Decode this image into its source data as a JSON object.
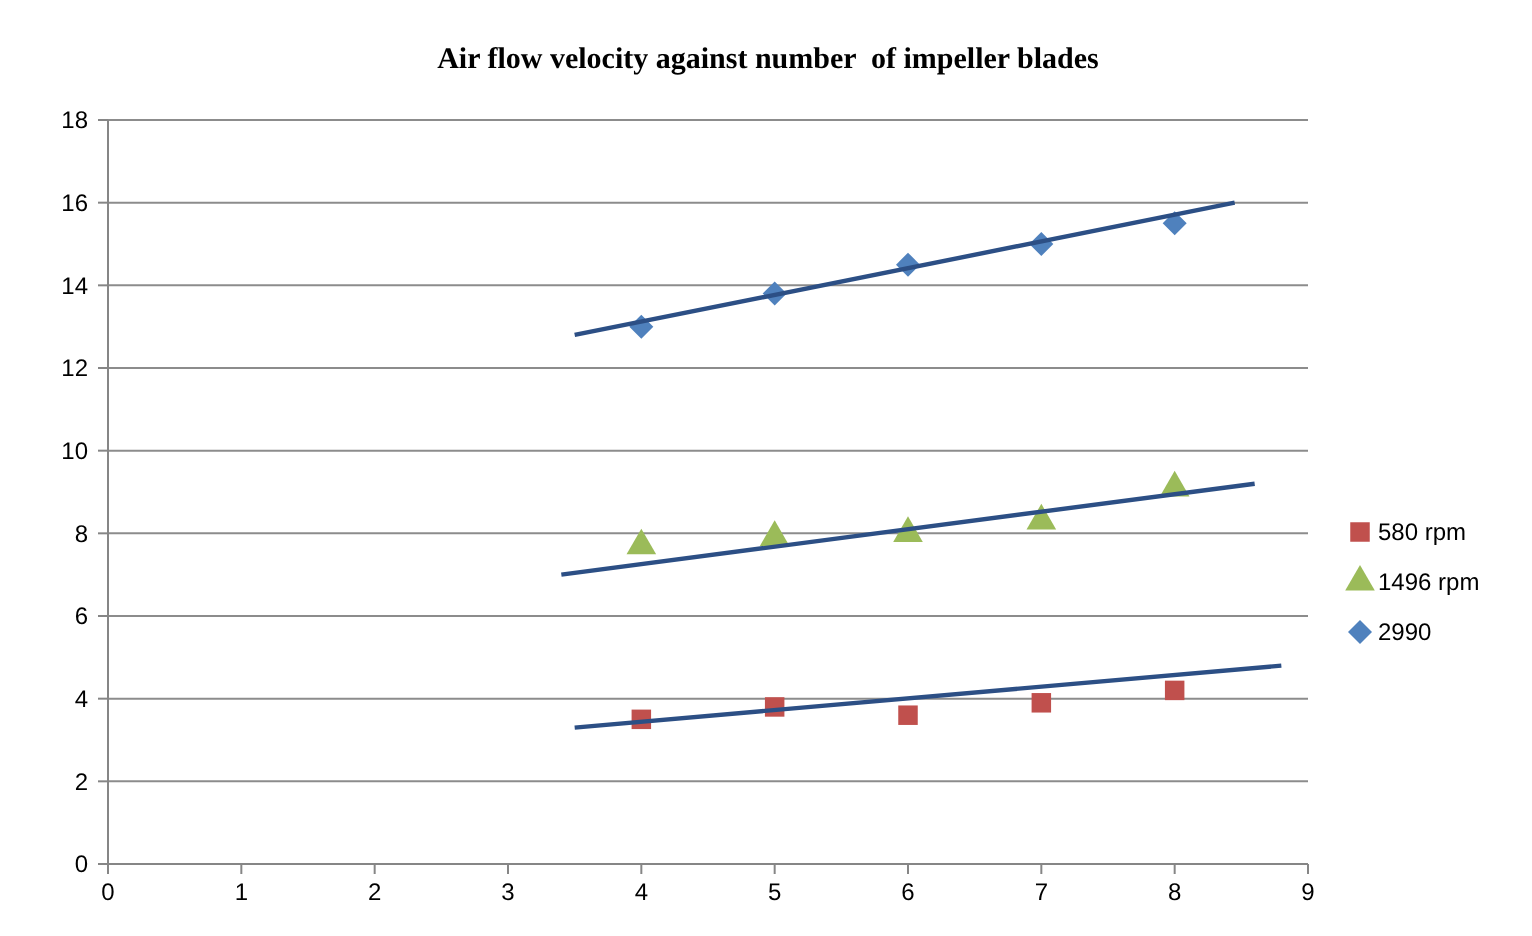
{
  "chart_data": {
    "type": "scatter",
    "title": "Air flow velocity against number  of impeller blades",
    "x": [
      4,
      5,
      6,
      7,
      8
    ],
    "series": [
      {
        "name": "580 rpm",
        "color": "#c0504d",
        "marker": "square",
        "values": [
          3.5,
          3.8,
          3.6,
          3.9,
          4.2
        ]
      },
      {
        "name": "1496 rpm",
        "color": "#9bbb59",
        "marker": "triangle",
        "values": [
          7.7,
          7.9,
          8.0,
          8.3,
          9.1
        ]
      },
      {
        "name": "2990",
        "color": "#4f81bd",
        "marker": "diamond",
        "values": [
          13.0,
          13.8,
          14.5,
          15.0,
          15.5
        ]
      },
      {
        "type": "line",
        "color": "#2c4f85",
        "marker": "none",
        "x": [
          3.5,
          8.8
        ],
        "values": [
          3.3,
          4.8
        ]
      },
      {
        "type": "line",
        "color": "#2c4f85",
        "marker": "none",
        "x": [
          3.4,
          8.6
        ],
        "values": [
          7.0,
          9.2
        ]
      },
      {
        "type": "line",
        "color": "#2c4f85",
        "marker": "none",
        "x": [
          3.5,
          8.45
        ],
        "values": [
          12.8,
          16.0
        ]
      }
    ],
    "xlim": [
      0,
      9
    ],
    "xticks": [
      0,
      1,
      2,
      3,
      4,
      5,
      6,
      7,
      8,
      9
    ],
    "ylim": [
      0,
      18
    ],
    "yticks": [
      0,
      2,
      4,
      6,
      8,
      10,
      12,
      14,
      16,
      18
    ],
    "grid": "y",
    "legend": "right"
  }
}
